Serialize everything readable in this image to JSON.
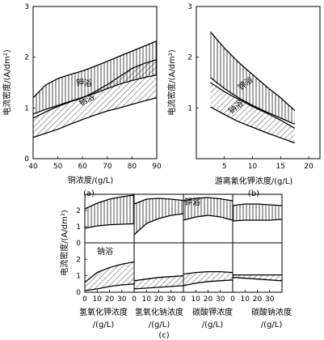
{
  "chart_data": [
    {
      "type": "area",
      "panel_label": "(a)",
      "xlabel": "铜浓度/(g/L)",
      "ylabel": "电流密度/(A/dm²)",
      "xlim": [
        40,
        90
      ],
      "ylim": [
        0,
        3
      ],
      "x_ticks": [
        "40",
        "50",
        "60",
        "70",
        "80",
        "90"
      ],
      "y_ticks": [
        "0",
        "1",
        "2",
        "3"
      ],
      "series": [
        {
          "name": "钾浴",
          "upper": [
            [
              40,
              1.2
            ],
            [
              45,
              1.45
            ],
            [
              50,
              1.58
            ],
            [
              55,
              1.66
            ],
            [
              60,
              1.73
            ],
            [
              65,
              1.82
            ],
            [
              70,
              1.92
            ],
            [
              75,
              2.02
            ],
            [
              80,
              2.12
            ],
            [
              85,
              2.22
            ],
            [
              90,
              2.32
            ]
          ],
          "lower": [
            [
              40,
              0.88
            ],
            [
              45,
              0.97
            ],
            [
              50,
              1.05
            ],
            [
              55,
              1.13
            ],
            [
              60,
              1.21
            ],
            [
              65,
              1.29
            ],
            [
              70,
              1.38
            ],
            [
              75,
              1.47
            ],
            [
              80,
              1.54
            ],
            [
              85,
              1.6
            ],
            [
              90,
              1.65
            ]
          ]
        },
        {
          "name": "钠浴",
          "upper": [
            [
              40,
              0.8
            ],
            [
              45,
              0.92
            ],
            [
              50,
              1.03
            ],
            [
              55,
              1.12
            ],
            [
              60,
              1.2
            ],
            [
              65,
              1.32
            ],
            [
              70,
              1.46
            ],
            [
              75,
              1.62
            ],
            [
              80,
              1.78
            ],
            [
              85,
              1.88
            ],
            [
              90,
              1.95
            ]
          ],
          "lower": [
            [
              40,
              0.42
            ],
            [
              45,
              0.5
            ],
            [
              50,
              0.58
            ],
            [
              55,
              0.68
            ],
            [
              60,
              0.77
            ],
            [
              65,
              0.86
            ],
            [
              70,
              0.94
            ],
            [
              75,
              1.0
            ],
            [
              80,
              1.07
            ],
            [
              85,
              1.14
            ],
            [
              90,
              1.2
            ]
          ]
        }
      ],
      "grid": false
    },
    {
      "type": "area",
      "panel_label": "(b)",
      "xlabel": "游离氰化钾浓度/(g/L)",
      "ylabel": "电流密度/(A/dm²)",
      "xlim": [
        0,
        22
      ],
      "ylim": [
        0,
        3
      ],
      "x_ticks": [
        "5",
        "10",
        "15",
        "20"
      ],
      "y_ticks": [
        "1",
        "2",
        "3"
      ],
      "series": [
        {
          "name": "钾浴",
          "upper": [
            [
              2.5,
              2.5
            ],
            [
              5,
              2.18
            ],
            [
              7.5,
              1.9
            ],
            [
              10,
              1.66
            ],
            [
              12.5,
              1.42
            ],
            [
              15,
              1.2
            ],
            [
              17.5,
              0.95
            ]
          ],
          "lower": [
            [
              2.5,
              1.6
            ],
            [
              5,
              1.38
            ],
            [
              7.5,
              1.2
            ],
            [
              10,
              1.05
            ],
            [
              12.5,
              0.92
            ],
            [
              15,
              0.8
            ],
            [
              17.5,
              0.68
            ]
          ]
        },
        {
          "name": "钠浴",
          "upper": [
            [
              2.5,
              1.5
            ],
            [
              5,
              1.32
            ],
            [
              7.5,
              1.17
            ],
            [
              10,
              1.03
            ],
            [
              12.5,
              0.9
            ],
            [
              15,
              0.76
            ],
            [
              17.5,
              0.6
            ]
          ],
          "lower": [
            [
              2.5,
              1.02
            ],
            [
              5,
              0.87
            ],
            [
              7.5,
              0.73
            ],
            [
              10,
              0.62
            ],
            [
              12.5,
              0.51
            ],
            [
              15,
              0.41
            ],
            [
              17.5,
              0.31
            ]
          ]
        }
      ],
      "grid": false
    },
    {
      "type": "area",
      "panel_label": "(c)",
      "ylabel": "电流密度/(A/dm²)",
      "y_ticks": [
        "0",
        "1",
        "2"
      ],
      "x_ticks": [
        "0",
        "10",
        "20",
        "30"
      ],
      "rows": [
        "钾浴",
        "钠浴"
      ],
      "columns": [
        {
          "xlabel_lines": [
            "氢氧化钾浓度",
            "/(g/L)"
          ],
          "xlim": [
            0,
            40
          ],
          "potassium": {
            "upper": [
              [
                0,
                2.1
              ],
              [
                10,
                2.45
              ],
              [
                20,
                2.7
              ],
              [
                30,
                2.85
              ],
              [
                40,
                2.95
              ]
            ],
            "lower": [
              [
                0,
                0.9
              ],
              [
                10,
                1.05
              ],
              [
                20,
                1.12
              ],
              [
                30,
                1.15
              ],
              [
                40,
                1.18
              ]
            ]
          },
          "sodium": {
            "upper": [
              [
                0,
                0.6
              ],
              [
                10,
                1.2
              ],
              [
                20,
                1.5
              ],
              [
                30,
                1.7
              ],
              [
                40,
                1.85
              ]
            ],
            "lower": [
              [
                0,
                0.1
              ],
              [
                10,
                0.2
              ],
              [
                20,
                0.35
              ],
              [
                30,
                0.45
              ],
              [
                40,
                0.5
              ]
            ]
          }
        },
        {
          "xlabel_lines": [
            "氢氧化钠浓度",
            "/(g/L)"
          ],
          "xlim": [
            0,
            40
          ],
          "potassium": {
            "upper": [
              [
                0,
                2.4
              ],
              [
                10,
                2.7
              ],
              [
                20,
                2.75
              ],
              [
                30,
                2.7
              ],
              [
                40,
                2.62
              ]
            ],
            "lower": [
              [
                0,
                0.5
              ],
              [
                10,
                1.2
              ],
              [
                20,
                1.5
              ],
              [
                30,
                1.7
              ],
              [
                40,
                1.8
              ]
            ]
          },
          "sodium": {
            "upper": [
              [
                0,
                0.7
              ],
              [
                10,
                0.8
              ],
              [
                20,
                0.9
              ],
              [
                30,
                0.95
              ],
              [
                40,
                1.0
              ]
            ],
            "lower": [
              [
                0,
                0.2
              ],
              [
                10,
                0.25
              ],
              [
                20,
                0.3
              ],
              [
                30,
                0.35
              ],
              [
                40,
                0.4
              ]
            ]
          }
        },
        {
          "xlabel_lines": [
            "碳酸钾浓度",
            "/(g/L)"
          ],
          "xlim": [
            0,
            40
          ],
          "potassium": {
            "upper": [
              [
                0,
                2.6
              ],
              [
                10,
                2.75
              ],
              [
                20,
                2.8
              ],
              [
                30,
                2.72
              ],
              [
                40,
                2.6
              ]
            ],
            "lower": [
              [
                0,
                1.4
              ],
              [
                10,
                1.6
              ],
              [
                20,
                1.7
              ],
              [
                30,
                1.6
              ],
              [
                40,
                1.4
              ]
            ]
          },
          "sodium": {
            "upper": [
              [
                0,
                1.1
              ],
              [
                10,
                1.2
              ],
              [
                20,
                1.25
              ],
              [
                30,
                1.25
              ],
              [
                40,
                1.2
              ]
            ],
            "lower": [
              [
                0,
                0.4
              ],
              [
                10,
                0.55
              ],
              [
                20,
                0.65
              ],
              [
                30,
                0.7
              ],
              [
                40,
                0.75
              ]
            ]
          }
        },
        {
          "xlabel_lines": [
            "碳酸钠浓度",
            "/(g/L)"
          ],
          "xlim": [
            0,
            40
          ],
          "potassium": {
            "upper": [
              [
                0,
                2.3
              ],
              [
                10,
                2.4
              ],
              [
                20,
                2.4
              ],
              [
                30,
                2.35
              ],
              [
                40,
                2.3
              ]
            ],
            "lower": [
              [
                0,
                1.35
              ],
              [
                10,
                1.4
              ],
              [
                20,
                1.4
              ],
              [
                30,
                1.4
              ],
              [
                40,
                1.45
              ]
            ]
          },
          "sodium": {
            "upper": [
              [
                0,
                1.05
              ],
              [
                10,
                1.05
              ],
              [
                20,
                1.05
              ],
              [
                30,
                1.05
              ],
              [
                40,
                1.05
              ]
            ],
            "lower": [
              [
                0,
                0.9
              ],
              [
                10,
                0.85
              ],
              [
                20,
                0.8
              ],
              [
                30,
                0.75
              ],
              [
                40,
                0.7
              ]
            ]
          }
        }
      ],
      "grid": false
    }
  ]
}
